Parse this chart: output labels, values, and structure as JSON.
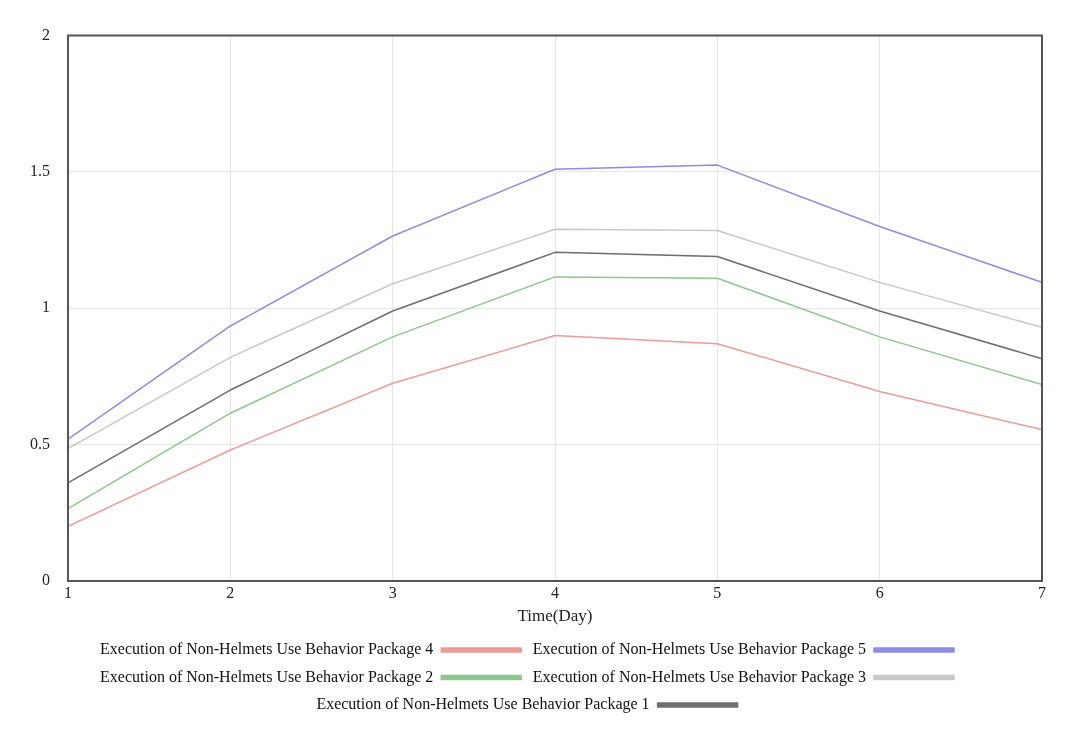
{
  "chart_data": {
    "type": "line",
    "xlabel": "Time(Day)",
    "x": [
      1,
      2,
      3,
      4,
      5,
      6,
      7
    ],
    "xlim": [
      1,
      7
    ],
    "xticks": [
      1,
      2,
      3,
      4,
      5,
      6,
      7
    ],
    "ylim": [
      0,
      2
    ],
    "yticks": [
      0,
      0.5,
      1,
      1.5,
      2
    ],
    "grid": true,
    "legend": "bottom",
    "marker": "none",
    "line_style": "solid",
    "series": [
      {
        "name": "Execution of Non-Helmets Use Behavior Package 5",
        "color": "#8c8ce6",
        "values": [
          0.52,
          0.935,
          1.265,
          1.51,
          1.525,
          1.3,
          1.095
        ]
      },
      {
        "name": "Execution of Non-Helmets Use Behavior Package 4",
        "color": "#ee9a9a",
        "values": [
          0.2,
          0.48,
          0.725,
          0.9,
          0.87,
          0.695,
          0.555
        ]
      },
      {
        "name": "Execution of Non-Helmets Use Behavior Package 3",
        "color": "#c8c8c8",
        "values": [
          0.485,
          0.82,
          1.09,
          1.29,
          1.285,
          1.095,
          0.93
        ]
      },
      {
        "name": "Execution of Non-Helmets Use Behavior Package 2",
        "color": "#8cc88c",
        "values": [
          0.265,
          0.615,
          0.895,
          1.115,
          1.11,
          0.895,
          0.72
        ]
      },
      {
        "name": "Execution of Non-Helmets Use Behavior Package 1",
        "color": "#6e6e6e",
        "values": [
          0.36,
          0.7,
          0.99,
          1.205,
          1.19,
          0.99,
          0.815
        ]
      }
    ]
  }
}
